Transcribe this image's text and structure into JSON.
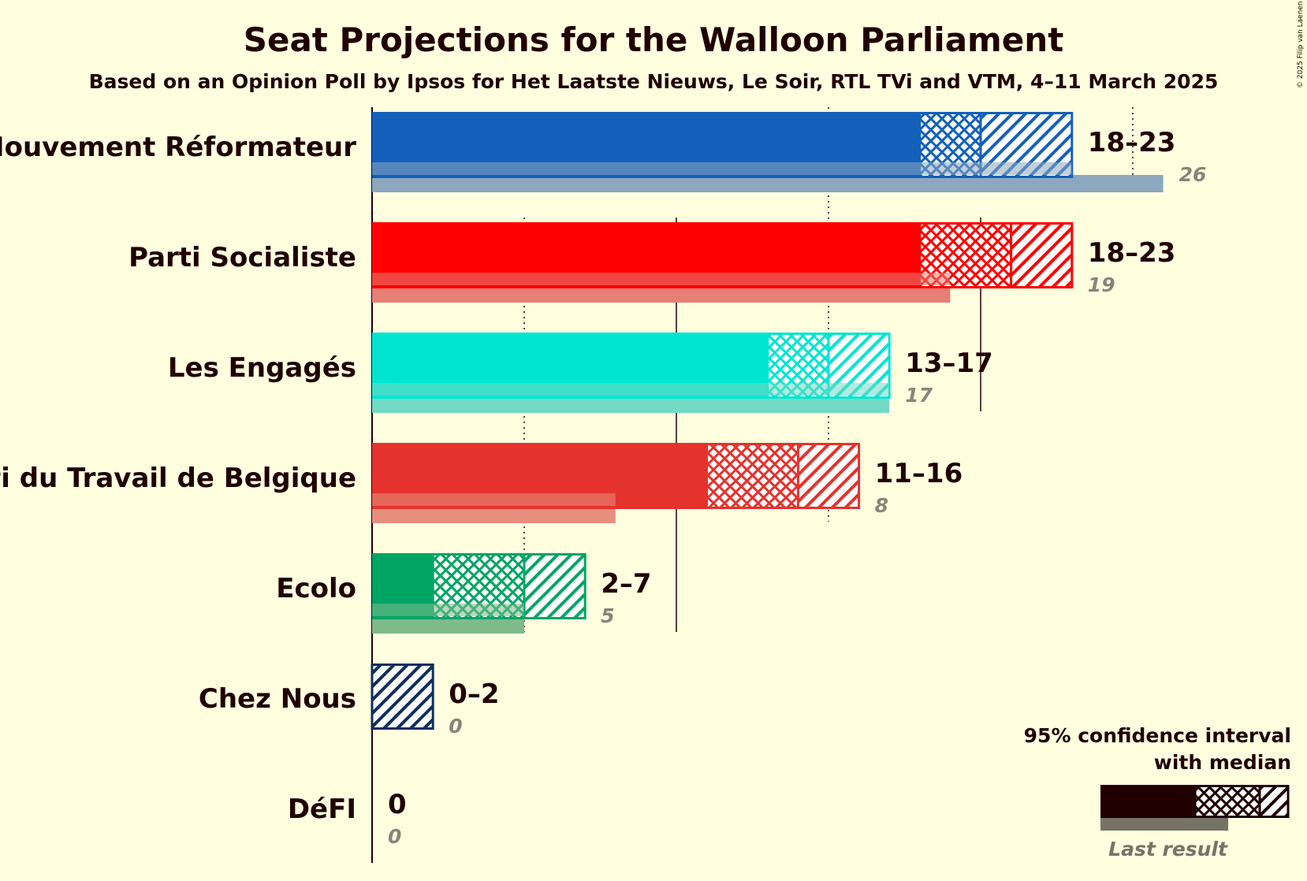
{
  "copyright": "© 2025 Filip van Laenen",
  "chart_data": {
    "type": "bar",
    "title": "Seat Projections for the Walloon Parliament",
    "subtitle": "Based on an Opinion Poll by Ipsos for Het Laatste Nieuws, Le Soir, RTL TVi and VTM, 4–11 March 2025",
    "xlim": [
      0,
      30
    ],
    "gridlines": [
      5,
      10,
      15,
      20,
      25
    ],
    "parties": [
      {
        "name": "Mouvement Réformateur",
        "ci_low": 18,
        "median": 20,
        "ci_high": 23,
        "range_label": "18–23",
        "last_result": 26,
        "last_label": "26",
        "color": "#1360bb",
        "last_color": "#8ca7be"
      },
      {
        "name": "Parti Socialiste",
        "ci_low": 18,
        "median": 21,
        "ci_high": 23,
        "range_label": "18–23",
        "last_result": 19,
        "last_label": "19",
        "color": "#ff0000",
        "last_color": "#e67f75"
      },
      {
        "name": "Les Engagés",
        "ci_low": 13,
        "median": 15,
        "ci_high": 17,
        "range_label": "13–17",
        "last_result": 17,
        "last_label": "17",
        "color": "#00e5d2",
        "last_color": "#73dbc5"
      },
      {
        "name": "Parti du Travail de Belgique",
        "ci_low": 11,
        "median": 14,
        "ci_high": 16,
        "range_label": "11–16",
        "last_result": 8,
        "last_label": "8",
        "color": "#e5322d",
        "last_color": "#e68f7d"
      },
      {
        "name": "Ecolo",
        "ci_low": 2,
        "median": 5,
        "ci_high": 7,
        "range_label": "2–7",
        "last_result": 5,
        "last_label": "5",
        "color": "#00a564",
        "last_color": "#7fbb8a"
      },
      {
        "name": "Chez Nous",
        "ci_low": 0,
        "median": 0,
        "ci_high": 2,
        "range_label": "0–2",
        "last_result": 0,
        "last_label": "0",
        "color": "#0e2e5e",
        "last_color": "#8c8c72"
      },
      {
        "name": "DéFI",
        "ci_low": 0,
        "median": 0,
        "ci_high": 0,
        "range_label": "0",
        "last_result": 0,
        "last_label": "0",
        "color": "#dc0050",
        "last_color": "#dc7f90"
      }
    ],
    "legend": {
      "line1": "95% confidence interval",
      "line2": "with median",
      "last_result": "Last result",
      "placement": "bottom-right",
      "color": "#200000",
      "last_color": "#777466"
    }
  }
}
